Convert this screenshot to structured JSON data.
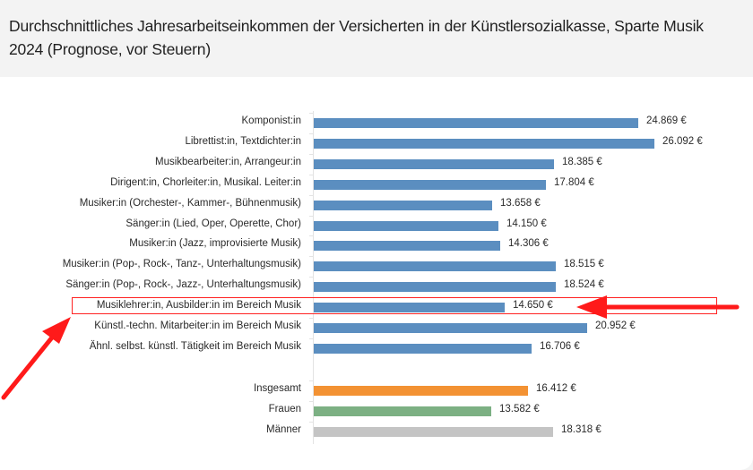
{
  "header": {
    "title": "Durchschnittliches Jahresarbeitseinkommen der Versicherten in der Künstlersozialkasse, Sparte Musik 2024 (Prognose, vor Steuern)"
  },
  "colors": {
    "blue": "#5b8ec0",
    "orange": "#f39233",
    "green": "#7cb083",
    "gray": "#c4c4c4",
    "annotation_red": "#ff1a1a"
  },
  "rows": [
    {
      "label": "Komponist:in",
      "value_label": "24.869 €",
      "value": 24869,
      "color": "blue"
    },
    {
      "label": "Librettist:in, Textdichter:in",
      "value_label": "26.092 €",
      "value": 26092,
      "color": "blue"
    },
    {
      "label": "Musikbearbeiter:in, Arrangeur:in",
      "value_label": "18.385 €",
      "value": 18385,
      "color": "blue"
    },
    {
      "label": "Dirigent:in, Chorleiter:in, Musikal. Leiter:in",
      "value_label": "17.804 €",
      "value": 17804,
      "color": "blue"
    },
    {
      "label": "Musiker:in (Orchester-, Kammer-, Bühnenmusik)",
      "value_label": "13.658 €",
      "value": 13658,
      "color": "blue"
    },
    {
      "label": "Sänger:in (Lied, Oper, Operette, Chor)",
      "value_label": "14.150 €",
      "value": 14150,
      "color": "blue"
    },
    {
      "label": "Musiker:in (Jazz, improvisierte Musik)",
      "value_label": "14.306 €",
      "value": 14306,
      "color": "blue"
    },
    {
      "label": "Musiker:in (Pop-, Rock-, Tanz-, Unterhaltungsmusik)",
      "value_label": "18.515 €",
      "value": 18515,
      "color": "blue"
    },
    {
      "label": "Sänger:in (Pop-, Rock-, Jazz-, Unterhaltungsmusik)",
      "value_label": "18.524 €",
      "value": 18524,
      "color": "blue"
    },
    {
      "label": "Musiklehrer:in, Ausbilder:in im Bereich Musik",
      "value_label": "14.650 €",
      "value": 14650,
      "color": "blue",
      "highlighted": true
    },
    {
      "label": "Künstl.-techn. Mitarbeiter:in im Bereich Musik",
      "value_label": "20.952 €",
      "value": 20952,
      "color": "blue"
    },
    {
      "label": "Ähnl. selbst. künstl. Tätigkeit im Bereich Musik",
      "value_label": "16.706 €",
      "value": 16706,
      "color": "blue"
    },
    {
      "label": "Insgesamt",
      "value_label": "16.412 €",
      "value": 16412,
      "color": "orange"
    },
    {
      "label": "Frauen",
      "value_label": "13.582 €",
      "value": 13582,
      "color": "green"
    },
    {
      "label": "Männer",
      "value_label": "18.318 €",
      "value": 18318,
      "color": "gray"
    }
  ],
  "chart_data": {
    "type": "bar",
    "orientation": "horizontal",
    "title": "Durchschnittliches Jahresarbeitseinkommen der Versicherten in der Künstlersozialkasse, Sparte Musik 2024 (Prognose, vor Steuern)",
    "xlabel": "",
    "ylabel": "",
    "unit": "€",
    "grid": false,
    "legend": null,
    "categories": [
      "Komponist:in",
      "Librettist:in, Textdichter:in",
      "Musikbearbeiter:in, Arrangeur:in",
      "Dirigent:in, Chorleiter:in, Musikal. Leiter:in",
      "Musiker:in (Orchester-, Kammer-, Bühnenmusik)",
      "Sänger:in (Lied, Oper, Operette, Chor)",
      "Musiker:in (Jazz, improvisierte Musik)",
      "Musiker:in (Pop-, Rock-, Tanz-, Unterhaltungsmusik)",
      "Sänger:in (Pop-, Rock-, Jazz-, Unterhaltungsmusik)",
      "Musiklehrer:in, Ausbilder:in im Bereich Musik",
      "Künstl.-techn. Mitarbeiter:in im Bereich Musik",
      "Ähnl. selbst. künstl. Tätigkeit im Bereich Musik",
      "Insgesamt",
      "Frauen",
      "Männer"
    ],
    "values": [
      24869,
      26092,
      18385,
      17804,
      13658,
      14150,
      14306,
      18515,
      18524,
      14650,
      20952,
      16706,
      16412,
      13582,
      18318
    ],
    "bar_colors": [
      "#5b8ec0",
      "#5b8ec0",
      "#5b8ec0",
      "#5b8ec0",
      "#5b8ec0",
      "#5b8ec0",
      "#5b8ec0",
      "#5b8ec0",
      "#5b8ec0",
      "#5b8ec0",
      "#5b8ec0",
      "#5b8ec0",
      "#f39233",
      "#7cb083",
      "#c4c4c4"
    ],
    "annotations": [
      {
        "type": "highlight-box",
        "target": "Musiklehrer:in, Ausbilder:in im Bereich Musik",
        "color": "#ff1a1a"
      },
      {
        "type": "arrow",
        "direction": "left",
        "target": "14.650 €",
        "color": "#ff1a1a"
      },
      {
        "type": "arrow",
        "direction": "up-right",
        "target": "Musiklehrer:in, Ausbilder:in im Bereich Musik",
        "color": "#ff1a1a"
      }
    ]
  }
}
